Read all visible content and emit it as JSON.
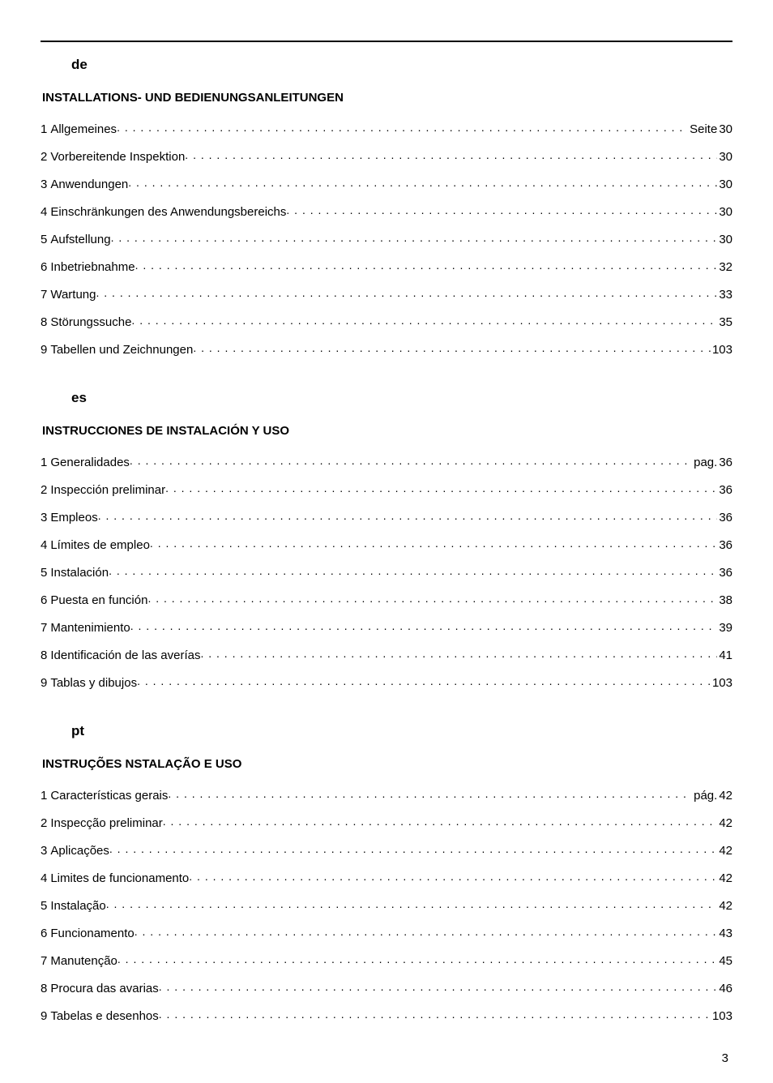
{
  "page_number": "3",
  "sections": [
    {
      "lang_code": "de",
      "title": "INSTALLATIONS- UND BEDIENUNGSANLEITUNGEN",
      "page_prefix": "Seite",
      "entries": [
        {
          "num": "1",
          "label": "Allgemeines",
          "page": "30",
          "show_prefix": true
        },
        {
          "num": "2",
          "label": "Vorbereitende Inspektion",
          "page": "30",
          "show_prefix": false
        },
        {
          "num": "3",
          "label": "Anwendungen",
          "page": "30",
          "show_prefix": false
        },
        {
          "num": "4",
          "label": "Einschränkungen des Anwendungsbereichs",
          "page": "30",
          "show_prefix": false
        },
        {
          "num": "5",
          "label": "Aufstellung",
          "page": "30",
          "show_prefix": false
        },
        {
          "num": "6",
          "label": "Inbetriebnahme",
          "page": "32",
          "show_prefix": false
        },
        {
          "num": "7",
          "label": "Wartung",
          "page": "33",
          "show_prefix": false
        },
        {
          "num": "8",
          "label": "Störungssuche",
          "page": "35",
          "show_prefix": false
        },
        {
          "num": "9",
          "label": "Tabellen und Zeichnungen",
          "page": "103",
          "show_prefix": false
        }
      ]
    },
    {
      "lang_code": "es",
      "title": "INSTRUCCIONES DE INSTALACIÓN Y USO",
      "page_prefix": "pag.",
      "entries": [
        {
          "num": "1",
          "label": "Generalidades",
          "page": "36",
          "show_prefix": true
        },
        {
          "num": "2",
          "label": "Inspección preliminar",
          "page": "36",
          "show_prefix": false
        },
        {
          "num": "3",
          "label": "Empleos",
          "page": "36",
          "show_prefix": false
        },
        {
          "num": "4",
          "label": "Límites de empleo",
          "page": "36",
          "show_prefix": false
        },
        {
          "num": "5",
          "label": "Instalación",
          "page": "36",
          "show_prefix": false
        },
        {
          "num": "6",
          "label": "Puesta en función",
          "page": "38",
          "show_prefix": false
        },
        {
          "num": "7",
          "label": "Mantenimiento",
          "page": "39",
          "show_prefix": false
        },
        {
          "num": "8",
          "label": "Identificación de las averías",
          "page": "41",
          "show_prefix": false
        },
        {
          "num": "9",
          "label": "Tablas y dibujos",
          "page": "103",
          "show_prefix": false
        }
      ]
    },
    {
      "lang_code": "pt",
      "title": "INSTRUÇÕES NSTALAÇÃO E USO",
      "page_prefix": "pág.",
      "entries": [
        {
          "num": "1",
          "label": "Características gerais",
          "page": "42",
          "show_prefix": true
        },
        {
          "num": "2",
          "label": "Inspecção preliminar",
          "page": "42",
          "show_prefix": false
        },
        {
          "num": "3",
          "label": "Aplicações",
          "page": "42",
          "show_prefix": false
        },
        {
          "num": "4",
          "label": "Limites de funcionamento",
          "page": "42",
          "show_prefix": false
        },
        {
          "num": "5",
          "label": "Instalação",
          "page": "42",
          "show_prefix": false
        },
        {
          "num": "6",
          "label": "Funcionamento",
          "page": "43",
          "show_prefix": false
        },
        {
          "num": "7",
          "label": "Manutenção",
          "page": "45",
          "show_prefix": false
        },
        {
          "num": "8",
          "label": "Procura das avarias",
          "page": "46",
          "show_prefix": false
        },
        {
          "num": "9",
          "label": "Tabelas e desenhos",
          "page": "103",
          "show_prefix": false
        }
      ]
    }
  ]
}
